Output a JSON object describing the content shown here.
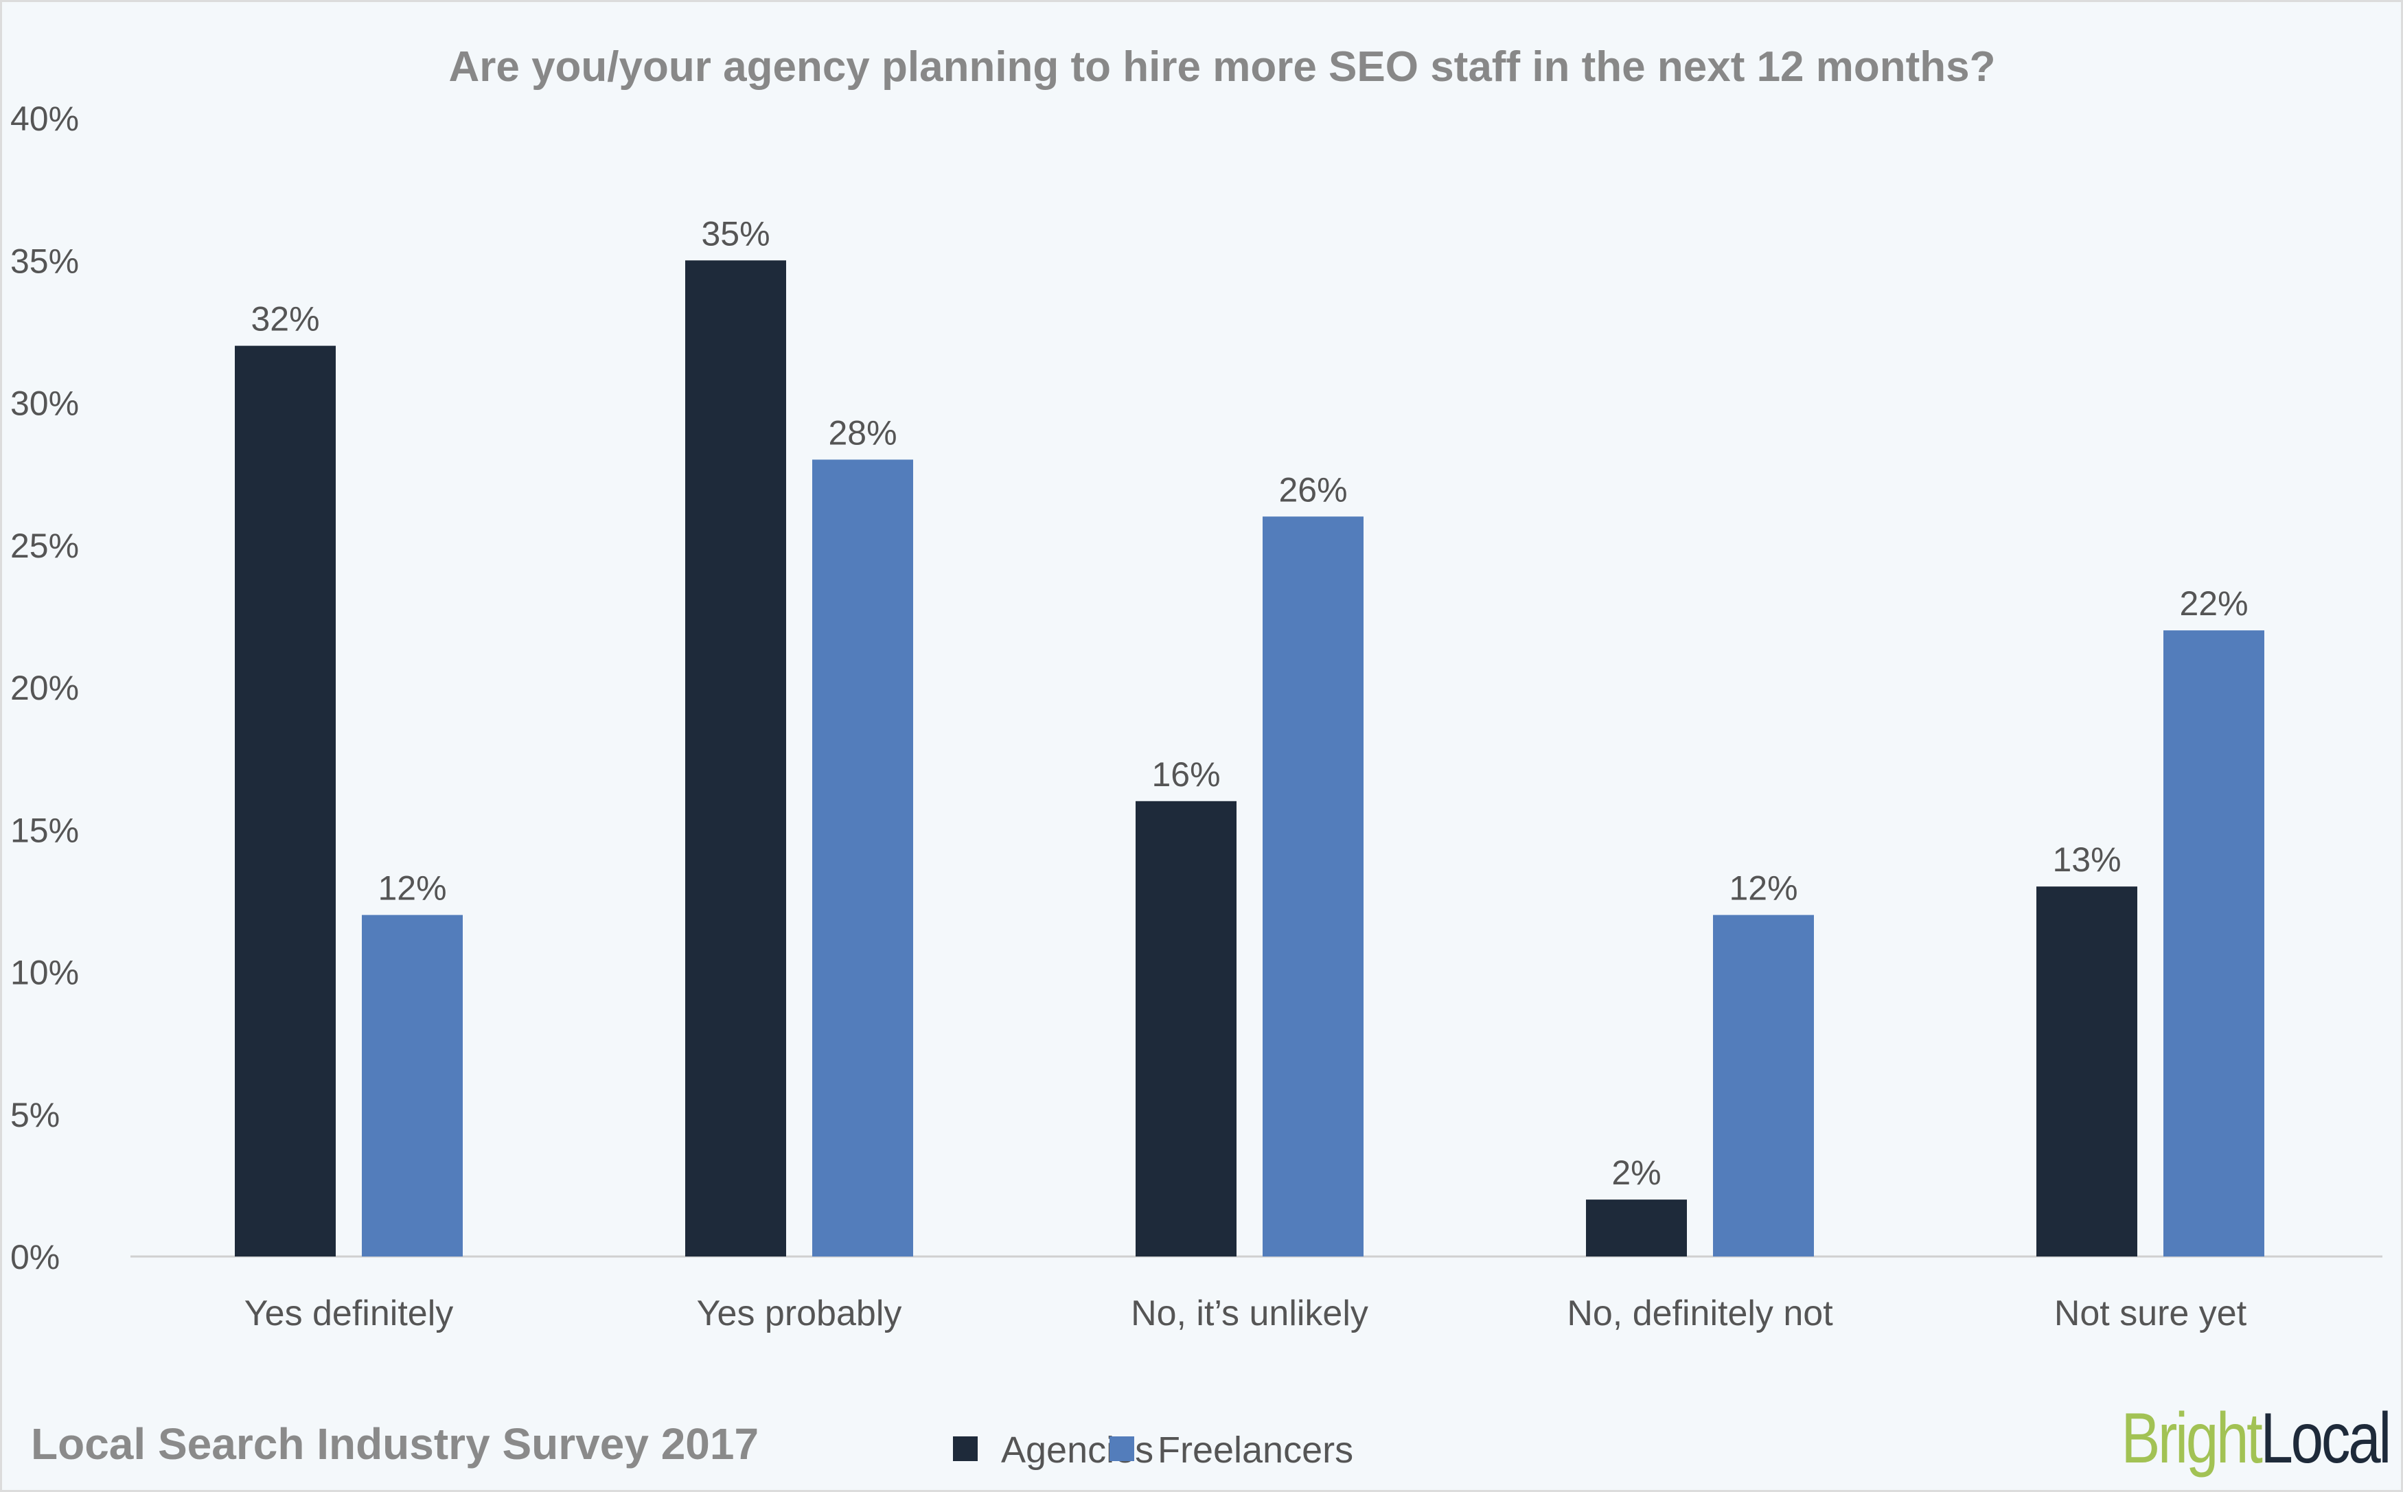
{
  "chart_data": {
    "type": "bar",
    "title": "Are you/your agency planning to hire more SEO staff in the next 12 months?",
    "categories": [
      "Yes definitely",
      "Yes probably",
      "No, it’s unlikely",
      "No, definitely not",
      "Not sure yet"
    ],
    "series": [
      {
        "name": "Agencies",
        "values": [
          32,
          35,
          16,
          2,
          13
        ],
        "color": "#1e2a3a"
      },
      {
        "name": "Freelancers",
        "values": [
          12,
          28,
          26,
          12,
          22
        ],
        "color": "#537dbb"
      }
    ],
    "value_suffix": "%",
    "ylim": [
      0,
      40
    ],
    "yticks": [
      "0%",
      "5%",
      "10%",
      "15%",
      "20%",
      "25%",
      "30%",
      "35%",
      "40%"
    ],
    "grid": false,
    "legend_placement": "bottom"
  },
  "footer": {
    "survey_label": "Local Search Industry Survey 2017",
    "logo_text": "BrightLocal",
    "logo_part1": "Bright",
    "logo_part2": "Local",
    "logo_colors": [
      "#a2c254",
      "#1e2a3a"
    ]
  },
  "background": "#f4f8fb"
}
